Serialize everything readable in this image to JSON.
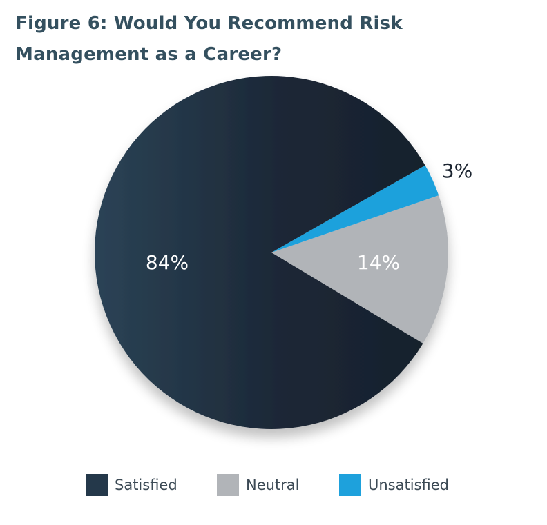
{
  "chart_data": {
    "type": "pie",
    "title": "Figure 6: Would You Recommend Risk Management as a Career?",
    "slices": [
      {
        "name": "Satisfied",
        "value": 84,
        "label": "84%",
        "color": "#1b2838"
      },
      {
        "name": "Neutral",
        "value": 14,
        "label": "14%",
        "color": "#b1b4b8"
      },
      {
        "name": "Unsatisfied",
        "value": 3,
        "label": "3%",
        "color": "#1ea1dc"
      }
    ],
    "legend_position": "bottom"
  },
  "colors": {
    "title": "#34505f",
    "satisfied_gradient_start": "#2b4356",
    "satisfied_gradient_end": "#17202c"
  }
}
